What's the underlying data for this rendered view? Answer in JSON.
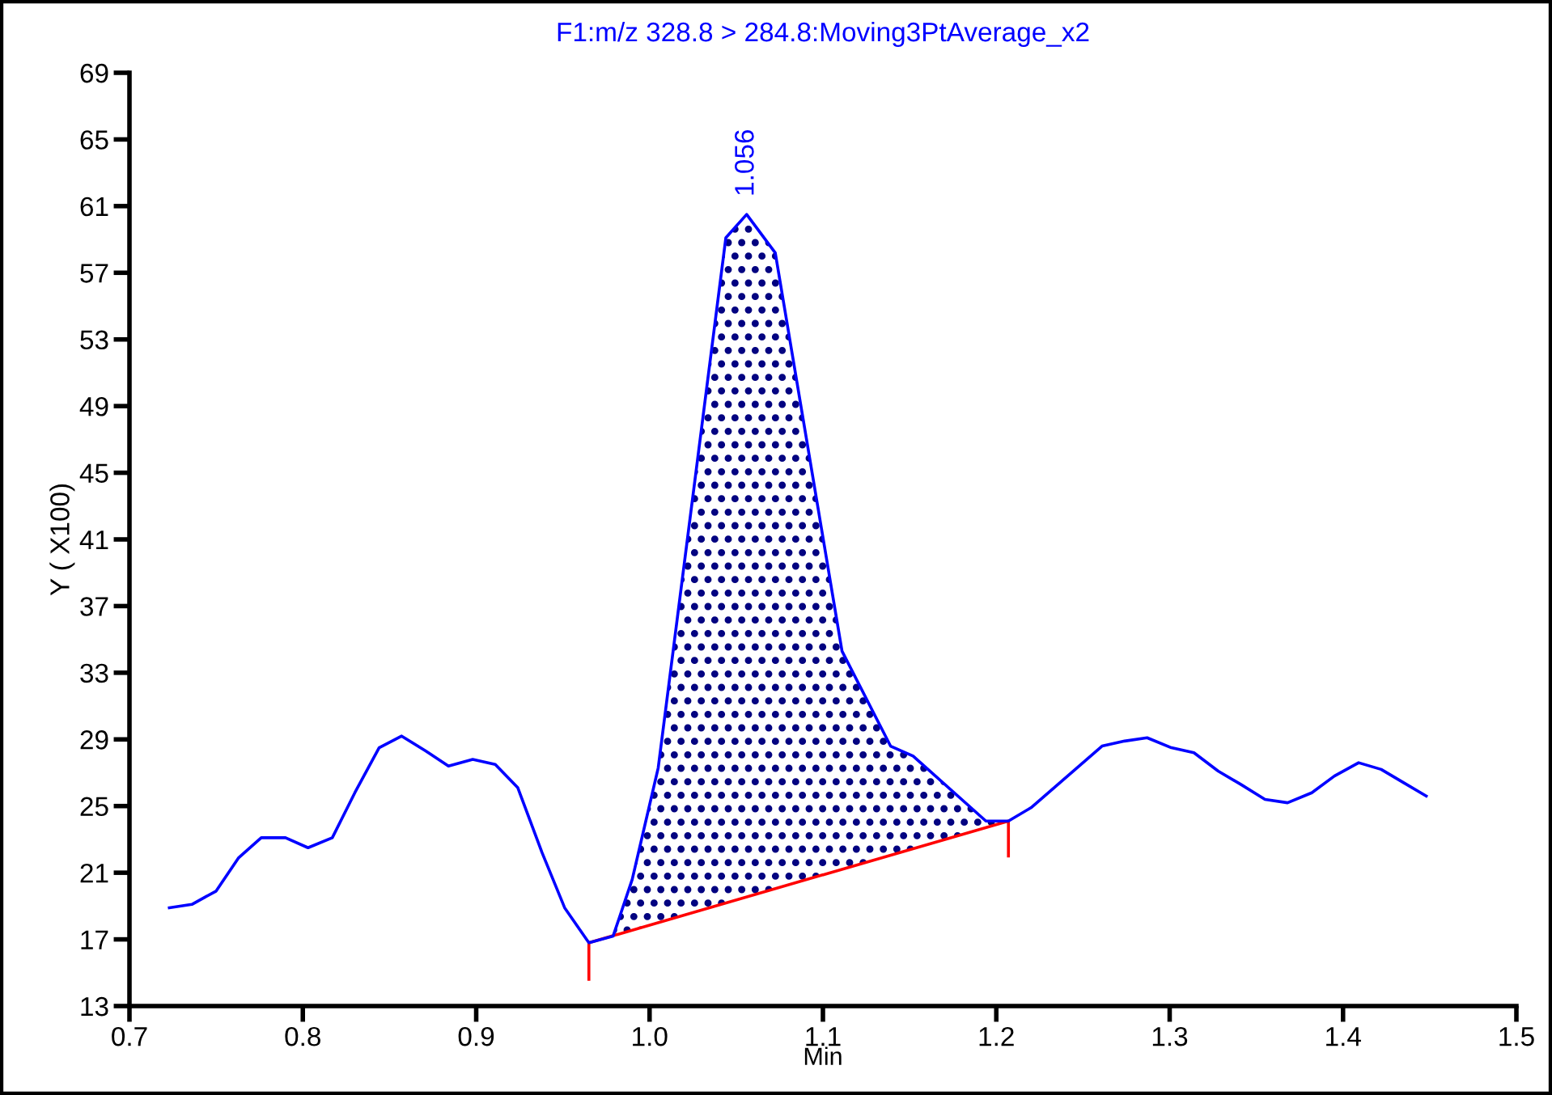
{
  "chart_data": {
    "type": "line",
    "title": "F1:m/z 328.8 > 284.8:Moving3PtAverage_x2",
    "xlabel": "Min",
    "ylabel": "Y ( X100)",
    "xlim": [
      0.7,
      1.5
    ],
    "xticks": [
      {
        "value": 0.7,
        "label": "0.7"
      },
      {
        "value": 0.8,
        "label": "0.8"
      },
      {
        "value": 0.9,
        "label": "0.9"
      },
      {
        "value": 1.0,
        "label": "1.0"
      },
      {
        "value": 1.1,
        "label": "1.1"
      },
      {
        "value": 1.2,
        "label": "1.2"
      },
      {
        "value": 1.3,
        "label": "1.3"
      },
      {
        "value": 1.4,
        "label": "1.4"
      },
      {
        "value": 1.5,
        "label": "1.5"
      }
    ],
    "ylim": [
      13,
      69
    ],
    "yticks": [
      13,
      17,
      21,
      25,
      29,
      33,
      37,
      41,
      45,
      49,
      53,
      57,
      61,
      65,
      69
    ],
    "grid": false,
    "series": [
      {
        "type": "area",
        "color": "#000080",
        "x": [
          0.965,
          0.979,
          0.99,
          1.005,
          1.044,
          1.056,
          1.0725,
          1.111,
          1.139,
          1.152,
          1.194,
          1.207
        ],
        "values": [
          16.8,
          17.2,
          20.6,
          27.3,
          59.1,
          60.5,
          58.2,
          34.3,
          28.6,
          28.0,
          24.1,
          24.1
        ]
      },
      {
        "color": "#ff0000",
        "x": [
          0.965,
          0.965,
          1.207,
          1.207
        ],
        "values": [
          14.6,
          16.8,
          24.1,
          22.0
        ]
      },
      {
        "color": "#0000ff",
        "x": [
          0.723,
          0.736,
          0.75,
          0.763,
          0.776,
          0.79,
          0.803,
          0.817,
          0.83,
          0.844,
          0.857,
          0.871,
          0.884,
          0.898,
          0.911,
          0.924,
          0.938,
          0.951,
          0.965,
          0.979,
          0.99,
          1.005,
          1.044,
          1.056,
          1.0725,
          1.111,
          1.139,
          1.152,
          1.194,
          1.207,
          1.22,
          1.261,
          1.274,
          1.287,
          1.301,
          1.314,
          1.328,
          1.341,
          1.355,
          1.368,
          1.382,
          1.395,
          1.409,
          1.422,
          1.435,
          1.448
        ],
        "values": [
          18.9,
          19.1,
          19.9,
          21.9,
          23.1,
          23.1,
          22.5,
          23.1,
          25.8,
          28.5,
          29.2,
          28.3,
          27.4,
          27.8,
          27.5,
          26.1,
          22.2,
          18.9,
          16.8,
          17.2,
          20.6,
          27.3,
          59.1,
          60.5,
          58.2,
          34.3,
          28.6,
          28.0,
          24.1,
          24.1,
          24.9,
          28.6,
          28.9,
          29.1,
          28.5,
          28.2,
          27.1,
          26.3,
          25.4,
          25.2,
          25.8,
          26.8,
          27.6,
          27.2,
          26.4,
          25.6
        ]
      }
    ],
    "annotations": [
      {
        "text": "1.056",
        "x": 1.056,
        "y": 60.5
      }
    ]
  }
}
